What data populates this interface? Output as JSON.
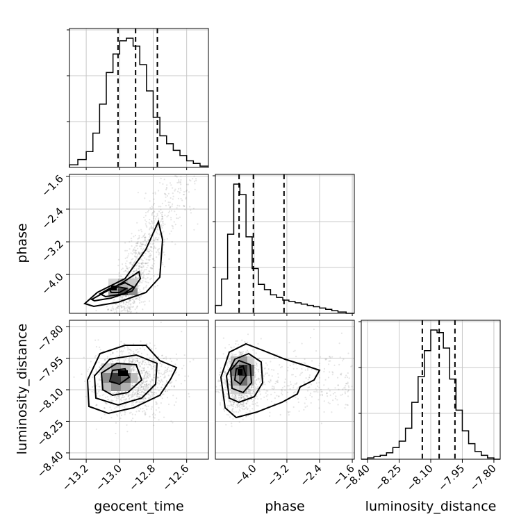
{
  "chart_data": {
    "type": "corner",
    "parameters": [
      "geocent_time",
      "phase",
      "luminosity_distance"
    ],
    "axis_labels": {
      "x": [
        "geocent_time",
        "phase",
        "luminosity_distance"
      ],
      "y": [
        "phase",
        "luminosity_distance"
      ]
    },
    "ranges": {
      "geocent_time": [
        -13.3,
        -12.47
      ],
      "phase": [
        -4.95,
        -1.55
      ],
      "luminosity_distance": [
        -8.43,
        -7.77
      ]
    },
    "ticks": {
      "geocent_time": {
        "values": [
          -13.2,
          -13.0,
          -12.8,
          -12.6
        ],
        "labels": [
          "−13.2",
          "−13.0",
          "−12.8",
          "−12.6"
        ]
      },
      "phase": {
        "values": [
          -4.0,
          -3.2,
          -2.4,
          -1.6
        ],
        "labels": [
          "−4.0",
          "−3.2",
          "−2.4",
          "−1.6"
        ]
      },
      "luminosity_distance": {
        "values": [
          -8.4,
          -8.25,
          -8.1,
          -7.95,
          -7.8
        ],
        "labels": [
          "−8.40",
          "−8.25",
          "−8.10",
          "−7.95",
          "−7.80"
        ]
      }
    },
    "quantiles": {
      "geocent_time": [
        -13.01,
        -12.905,
        -12.775
      ],
      "phase": [
        -4.37,
        -4.02,
        -3.27
      ],
      "luminosity_distance": [
        -8.14,
        -8.06,
        -7.985
      ]
    },
    "histograms": {
      "geocent_time": {
        "edges": [
          -13.3,
          -13.25,
          -13.2,
          -13.16,
          -13.12,
          -13.08,
          -13.04,
          -13.0,
          -12.96,
          -12.92,
          -12.88,
          -12.84,
          -12.8,
          -12.76,
          -12.72,
          -12.68,
          -12.64,
          -12.6,
          -12.56,
          -12.52,
          -12.47
        ],
        "counts": [
          2,
          6,
          12,
          26,
          48,
          72,
          86,
          96,
          98,
          92,
          78,
          58,
          38,
          24,
          18,
          13,
          9,
          5,
          3,
          1
        ]
      },
      "phase": {
        "edges": [
          -4.95,
          -4.8,
          -4.65,
          -4.5,
          -4.35,
          -4.2,
          -4.05,
          -3.9,
          -3.75,
          -3.6,
          -3.45,
          -3.3,
          -3.15,
          -3.0,
          -2.85,
          -2.7,
          -2.55,
          -2.4,
          -2.25,
          -2.1,
          -1.95,
          -1.75,
          -1.55
        ],
        "counts": [
          6,
          26,
          60,
          98,
          90,
          58,
          34,
          22,
          18,
          14,
          12,
          10,
          9,
          8,
          7,
          6,
          5,
          4,
          3,
          2,
          1,
          0
        ]
      },
      "luminosity_distance": {
        "edges": [
          -8.43,
          -8.4,
          -8.37,
          -8.34,
          -8.31,
          -8.28,
          -8.25,
          -8.22,
          -8.19,
          -8.16,
          -8.13,
          -8.1,
          -8.07,
          -8.04,
          -8.01,
          -7.98,
          -7.95,
          -7.92,
          -7.89,
          -7.86,
          -7.83,
          -7.8,
          -7.77
        ],
        "counts": [
          0,
          1,
          2,
          3,
          5,
          9,
          14,
          24,
          44,
          64,
          84,
          100,
          98,
          86,
          62,
          38,
          22,
          12,
          6,
          3,
          1,
          0
        ]
      }
    },
    "scatter_centers": [
      {
        "x": "geocent_time",
        "y": "phase",
        "mean": [
          -12.9,
          -4.1
        ],
        "correlated": true
      },
      {
        "x": "geocent_time",
        "y": "luminosity_distance",
        "mean": [
          -12.92,
          -8.06
        ]
      },
      {
        "x": "phase",
        "y": "luminosity_distance",
        "mean": [
          -4.3,
          -8.06
        ]
      }
    ],
    "grid": true
  }
}
